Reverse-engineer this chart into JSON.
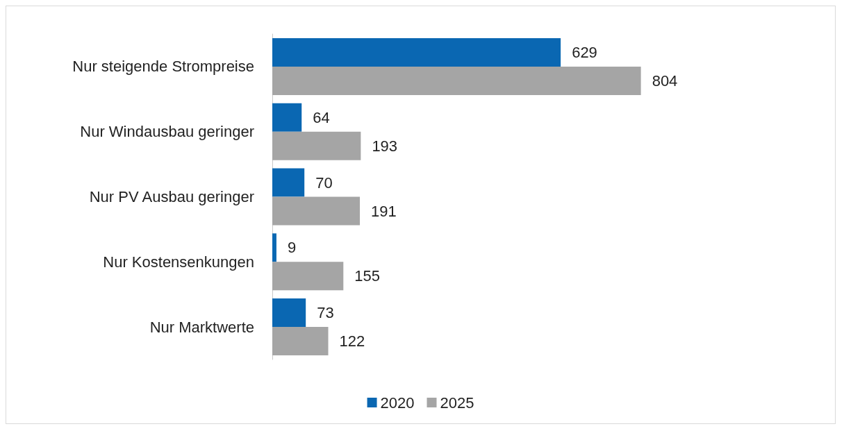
{
  "chart_data": {
    "type": "bar",
    "orientation": "horizontal",
    "categories": [
      "Nur steigende Strompreise",
      "Nur Windausbau geringer",
      "Nur PV Ausbau geringer",
      "Nur Kostensenkungen",
      "Nur Marktwerte"
    ],
    "series": [
      {
        "name": "2020",
        "color": "#0a67b2",
        "values": [
          629,
          64,
          70,
          9,
          73
        ]
      },
      {
        "name": "2025",
        "color": "#a5a5a5",
        "values": [
          804,
          193,
          191,
          155,
          122
        ]
      }
    ],
    "data_labels": true,
    "legend": "bottom",
    "grid": false
  }
}
